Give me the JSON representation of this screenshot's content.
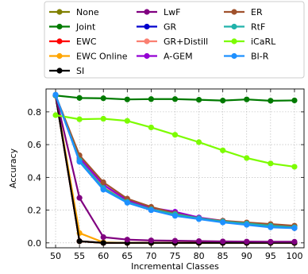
{
  "chart_data": {
    "type": "line",
    "xlabel": "Incremental Classes",
    "ylabel": "Accuracy",
    "x": [
      50,
      55,
      60,
      65,
      70,
      75,
      80,
      85,
      90,
      95,
      100
    ],
    "xlim": [
      48,
      102
    ],
    "ylim": [
      -0.03,
      0.94
    ],
    "yticks": [
      0.0,
      0.2,
      0.4,
      0.6,
      0.8
    ],
    "ytick_labels": [
      "0.0",
      "0.2",
      "0.4",
      "0.6",
      "0.8"
    ],
    "xtick_labels": [
      "50",
      "55",
      "60",
      "65",
      "70",
      "75",
      "80",
      "85",
      "90",
      "95",
      "100"
    ],
    "grid": true,
    "legend_position": "top, outside plot, 3 columns",
    "series": [
      {
        "name": "None",
        "color": "#808000",
        "values": [
          0.9,
          0.01,
          0.0,
          0.0,
          0.0,
          0.0,
          0.0,
          0.0,
          0.0,
          0.0,
          0.0
        ]
      },
      {
        "name": "Joint",
        "color": "#007a00",
        "values": [
          0.9,
          0.885,
          0.883,
          0.876,
          0.878,
          0.878,
          0.874,
          0.869,
          0.876,
          0.868,
          0.87
        ]
      },
      {
        "name": "EWC",
        "color": "#ff0000",
        "values": [
          0.9,
          0.01,
          0.0,
          0.0,
          0.0,
          0.0,
          0.0,
          0.0,
          0.0,
          0.0,
          0.0
        ]
      },
      {
        "name": "EWC Online",
        "color": "#ffa500",
        "values": [
          0.9,
          0.06,
          0.003,
          0.0,
          0.0,
          0.0,
          0.0,
          0.0,
          0.0,
          0.0,
          0.0
        ]
      },
      {
        "name": "SI",
        "color": "#000000",
        "values": [
          0.9,
          0.01,
          0.0,
          0.0,
          0.0,
          0.0,
          0.0,
          0.0,
          0.0,
          0.0,
          0.0
        ]
      },
      {
        "name": "LwF",
        "color": "#800080",
        "values": [
          0.9,
          0.275,
          0.035,
          0.02,
          0.015,
          0.013,
          0.011,
          0.009,
          0.008,
          0.007,
          0.007
        ]
      },
      {
        "name": "GR",
        "color": "#0000cd",
        "values": [
          0.9,
          0.5,
          0.33,
          0.25,
          0.2,
          0.17,
          0.15,
          0.13,
          0.115,
          0.1,
          0.09
        ]
      },
      {
        "name": "GR+Distill",
        "color": "#fa8072",
        "values": [
          0.9,
          0.51,
          0.34,
          0.255,
          0.205,
          0.175,
          0.152,
          0.132,
          0.117,
          0.102,
          0.093
        ]
      },
      {
        "name": "A-GEM",
        "color": "#9400d3",
        "values": [
          0.9,
          0.52,
          0.355,
          0.26,
          0.215,
          0.19,
          0.155,
          0.135,
          0.12,
          0.11,
          0.1
        ]
      },
      {
        "name": "ER",
        "color": "#a0522d",
        "values": [
          0.9,
          0.535,
          0.37,
          0.27,
          0.22,
          0.18,
          0.15,
          0.135,
          0.125,
          0.115,
          0.105
        ]
      },
      {
        "name": "RtF",
        "color": "#20b2aa",
        "values": [
          0.9,
          0.505,
          0.335,
          0.25,
          0.205,
          0.175,
          0.15,
          0.13,
          0.118,
          0.105,
          0.095
        ]
      },
      {
        "name": "iCaRL",
        "color": "#7cfc00",
        "values": [
          0.78,
          0.755,
          0.758,
          0.745,
          0.705,
          0.66,
          0.615,
          0.565,
          0.518,
          0.485,
          0.465
        ]
      },
      {
        "name": "BI-R",
        "color": "#1e90ff",
        "values": [
          0.905,
          0.495,
          0.325,
          0.245,
          0.2,
          0.165,
          0.145,
          0.125,
          0.11,
          0.095,
          0.09
        ]
      }
    ]
  }
}
